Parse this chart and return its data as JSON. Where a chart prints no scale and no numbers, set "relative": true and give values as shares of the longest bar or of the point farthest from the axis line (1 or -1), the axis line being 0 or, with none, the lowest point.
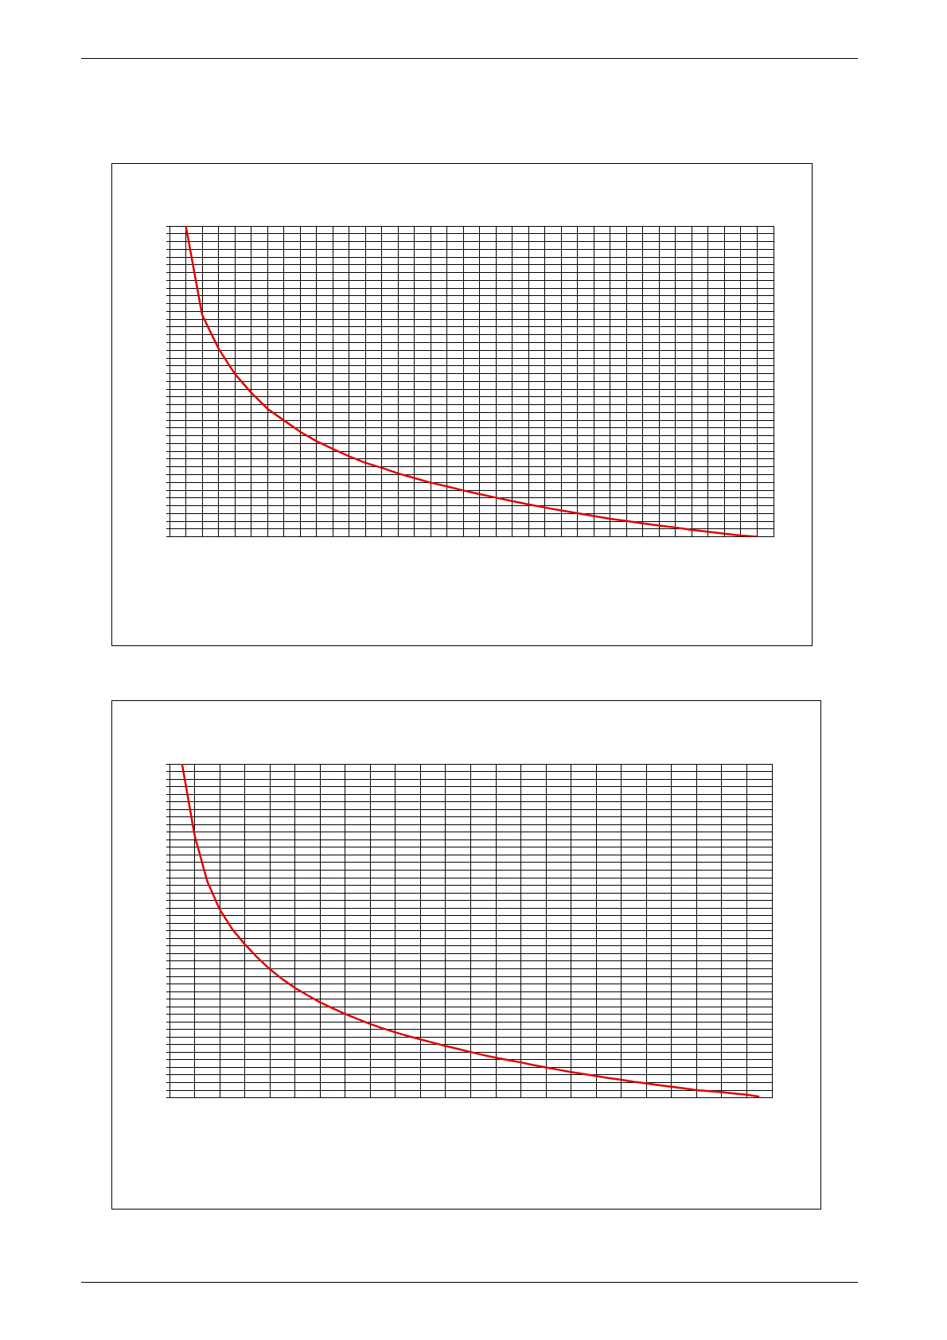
{
  "chart_data": [
    {
      "type": "line",
      "relative": true,
      "grid": true,
      "marker": "none",
      "line_style": "solid",
      "categories": [
        null,
        null,
        null,
        null,
        null,
        null,
        null,
        null,
        null,
        null,
        null,
        null,
        null,
        null,
        null,
        null,
        null,
        null,
        null,
        null,
        null,
        null,
        null,
        null,
        null,
        null,
        null,
        null,
        null,
        null,
        null,
        null,
        null,
        null,
        null,
        null,
        null,
        null
      ],
      "series": [
        {
          "color": "#e00000",
          "values": [
            null,
            1,
            0.714,
            0.606,
            0.524,
            0.464,
            0.412,
            0.375,
            0.338,
            0.308,
            0.283,
            0.259,
            0.238,
            0.222,
            0.204,
            0.189,
            0.174,
            0.162,
            0.149,
            0.137,
            0.126,
            0.115,
            0.104,
            0.094,
            0.085,
            0.076,
            0.067,
            0.058,
            0.051,
            0.043,
            0.036,
            0.03,
            0.022,
            0.016,
            0.01,
            0.004,
            0,
            null
          ]
        }
      ]
    },
    {
      "type": "line",
      "relative": true,
      "grid": true,
      "marker": "none",
      "line_style": "solid",
      "categories": [
        null,
        null,
        null,
        null,
        null,
        null,
        null,
        null,
        null,
        null,
        null,
        null,
        null,
        null,
        null,
        null,
        null,
        null,
        null,
        null,
        null,
        null,
        null,
        null,
        null,
        null,
        null,
        null,
        null,
        null,
        null,
        null,
        null,
        null,
        null,
        null,
        null,
        null,
        null,
        null,
        null,
        null,
        null,
        null,
        null,
        null,
        null,
        null,
        null
      ],
      "series": [
        {
          "color": "#e00000",
          "values": [
            null,
            1,
            0.786,
            0.649,
            0.564,
            0.505,
            0.46,
            0.42,
            0.385,
            0.355,
            0.329,
            0.307,
            0.286,
            0.268,
            0.251,
            0.236,
            0.221,
            0.208,
            0.196,
            0.185,
            0.175,
            0.165,
            0.155,
            0.146,
            0.137,
            0.128,
            0.12,
            0.113,
            0.106,
            0.098,
            0.091,
            0.084,
            0.077,
            0.071,
            0.065,
            0.059,
            0.054,
            0.048,
            0.043,
            0.038,
            0.033,
            0.028,
            0.023,
            0.02,
            0.017,
            0.013,
            0.009,
            0.003,
            null
          ]
        }
      ]
    }
  ]
}
